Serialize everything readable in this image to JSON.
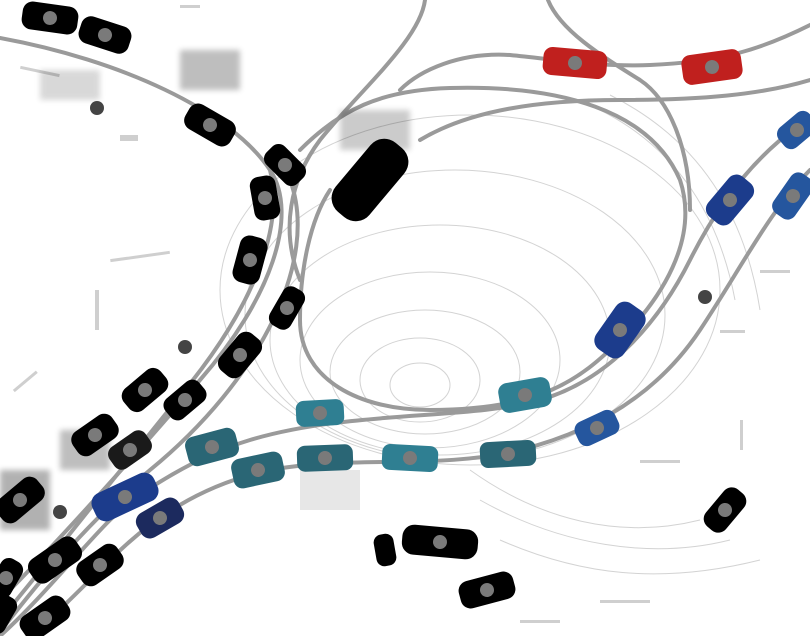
{
  "scene": {
    "palette": {
      "background": "#ffffff",
      "lane": "#9a9a9a",
      "lidar": "#d3d3d3",
      "center_marker": "#7a7a7a",
      "history": "#000000",
      "red_agent": "#c0201e",
      "navy_agent": "#1c3c8c",
      "blue_agent": "#25569e",
      "teal_agent": "#2f7f92",
      "dark_teal_agent": "#2a6675"
    }
  }
}
